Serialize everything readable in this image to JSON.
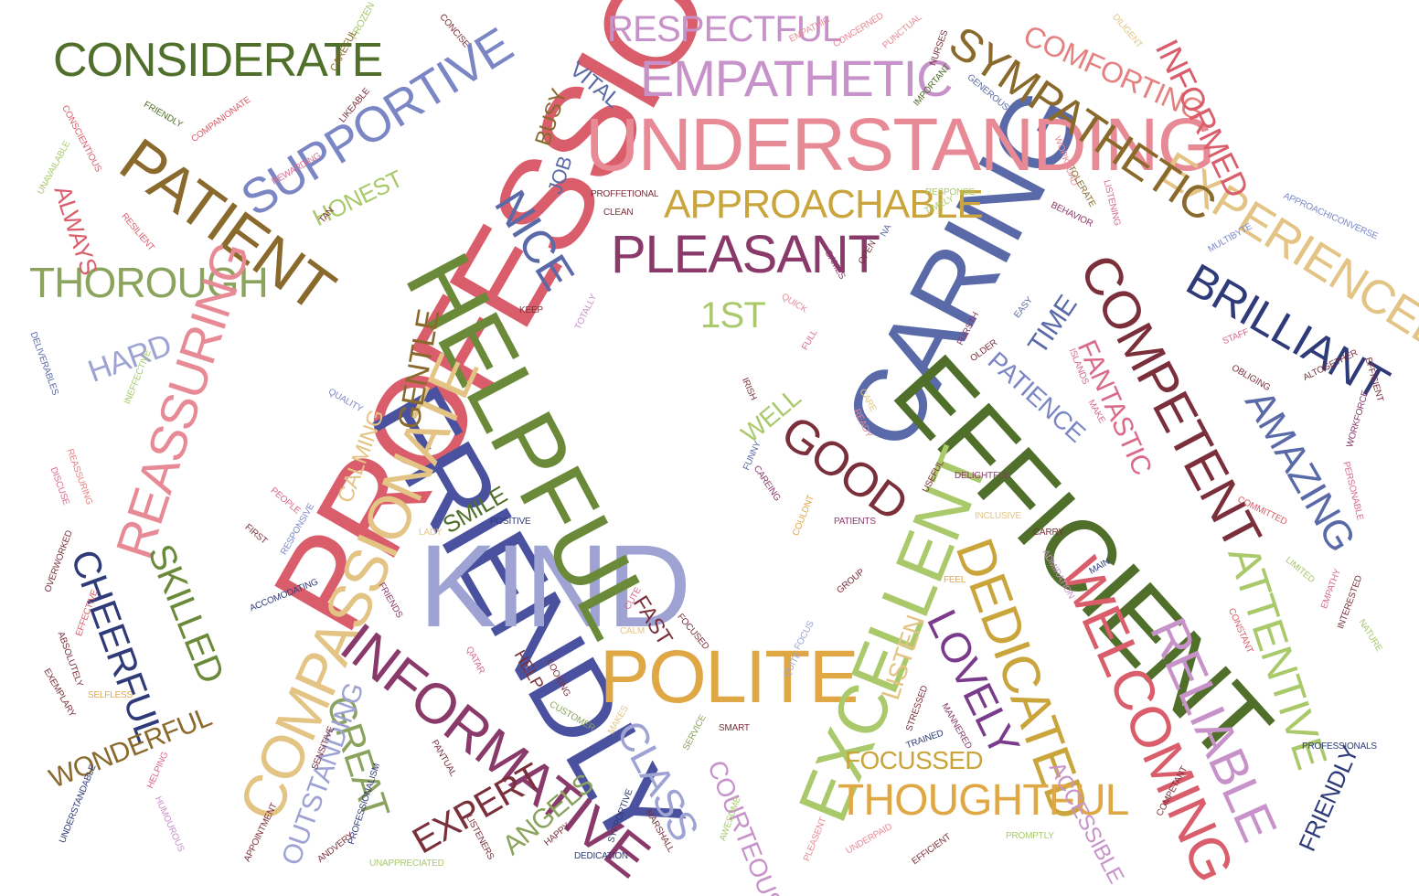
{
  "palette": {
    "red": "#d95d6a",
    "pink": "#e88a95",
    "navy": "#4a52a0",
    "lavender": "#9ea3d4",
    "periwinkle": "#7b86c5",
    "olive": "#6a8a3a",
    "lightgreen": "#a9c96b",
    "darkgreen": "#4f6f2a",
    "sage": "#8aa35d",
    "gold": "#e0a844",
    "mustard": "#c9a53c",
    "tan": "#e3c485",
    "brown": "#8a6a2c",
    "maroon": "#7a2f3a",
    "plum": "#8a3a6a",
    "orchid": "#c792c9",
    "magenta": "#b040a0",
    "purple": "#7a3b8c",
    "darknavy": "#2f3a78",
    "salmon": "#e58080",
    "rose": "#d96a8a",
    "slate": "#5a6aa8"
  },
  "words": [
    {
      "text": "PROFESSIONAL",
      "color": "red"
    },
    {
      "text": "FRIENDLY",
      "color": "navy"
    },
    {
      "text": "KIND",
      "color": "lavender"
    },
    {
      "text": "HELPFUL",
      "color": "olive"
    },
    {
      "text": "CARING",
      "color": "slate"
    },
    {
      "text": "EFFICIENT",
      "color": "darkgreen"
    },
    {
      "text": "UNDERSTANDING",
      "color": "pink"
    },
    {
      "text": "EMPATHETIC",
      "color": "orchid"
    },
    {
      "text": "RESPECTFUL",
      "color": "orchid"
    },
    {
      "text": "CONSIDERATE",
      "color": "darkgreen"
    },
    {
      "text": "SUPPORTIVE",
      "color": "periwinkle"
    },
    {
      "text": "PATIENT",
      "color": "brown"
    },
    {
      "text": "THOROUGH",
      "color": "sage"
    },
    {
      "text": "REASSURING",
      "color": "pink"
    },
    {
      "text": "COMPASSIONATE",
      "color": "tan"
    },
    {
      "text": "INFORMATIVE",
      "color": "plum"
    },
    {
      "text": "POLITE",
      "color": "gold"
    },
    {
      "text": "EXCELLENT",
      "color": "lightgreen"
    },
    {
      "text": "DEDICATED",
      "color": "mustard"
    },
    {
      "text": "WELCOMING",
      "color": "red"
    },
    {
      "text": "RELIABLE",
      "color": "orchid"
    },
    {
      "text": "ATTENTIVE",
      "color": "lightgreen"
    },
    {
      "text": "COMPETENT",
      "color": "maroon"
    },
    {
      "text": "AMAZING",
      "color": "slate"
    },
    {
      "text": "BRILLIANT",
      "color": "darknavy"
    },
    {
      "text": "EXPERIENCED",
      "color": "tan"
    },
    {
      "text": "SYMPATHETIC",
      "color": "brown"
    },
    {
      "text": "COMFORTING",
      "color": "salmon"
    },
    {
      "text": "INFORMED",
      "color": "red"
    },
    {
      "text": "APPROACHABLE",
      "color": "mustard"
    },
    {
      "text": "PLEASANT",
      "color": "plum"
    },
    {
      "text": "NICE",
      "color": "slate"
    },
    {
      "text": "GOOD",
      "color": "maroon"
    },
    {
      "text": "GENTLE",
      "color": "brown"
    },
    {
      "text": "CHEERFUL",
      "color": "darknavy"
    },
    {
      "text": "SKILLED",
      "color": "olive"
    },
    {
      "text": "LOVELY",
      "color": "purple"
    },
    {
      "text": "THOUGHTFUL",
      "color": "gold"
    },
    {
      "text": "FOCUSSED",
      "color": "mustard"
    },
    {
      "text": "GREAT",
      "color": "sage"
    },
    {
      "text": "CLASS",
      "color": "lavender"
    },
    {
      "text": "EXPERT",
      "color": "maroon"
    },
    {
      "text": "OUTSTANDING",
      "color": "lavender"
    },
    {
      "text": "WONDERFUL",
      "color": "brown"
    },
    {
      "text": "FANTASTIC",
      "color": "rose"
    },
    {
      "text": "PATIENCE",
      "color": "periwinkle"
    },
    {
      "text": "TIME",
      "color": "slate"
    },
    {
      "text": "1ST",
      "color": "lightgreen"
    },
    {
      "text": "HARD",
      "color": "lavender"
    },
    {
      "text": "ALWAYS",
      "color": "red"
    },
    {
      "text": "HONEST",
      "color": "lightgreen"
    },
    {
      "text": "VITAL",
      "color": "slate"
    },
    {
      "text": "BUSY",
      "color": "brown"
    },
    {
      "text": "JOB",
      "color": "slate"
    },
    {
      "text": "CALMING",
      "color": "tan"
    },
    {
      "text": "WELL",
      "color": "lightgreen"
    },
    {
      "text": "SMILE",
      "color": "darkgreen"
    },
    {
      "text": "ANGELS",
      "color": "sage"
    },
    {
      "text": "COURTEOUS",
      "color": "orchid"
    },
    {
      "text": "ACCESSIBLE",
      "color": "orchid"
    },
    {
      "text": "LISTEN",
      "color": "tan"
    },
    {
      "text": "FRIENDLY",
      "color": "darknavy"
    },
    {
      "text": "FAST",
      "color": "maroon"
    },
    {
      "text": "HELP",
      "color": "maroon"
    },
    {
      "text": "FROZEN",
      "color": "lightgreen"
    },
    {
      "text": "CAREFUL",
      "color": "brown"
    },
    {
      "text": "CONCISE",
      "color": "maroon"
    },
    {
      "text": "EMPATHIC",
      "color": "pink"
    },
    {
      "text": "CONCERNED",
      "color": "pink"
    },
    {
      "text": "PUNCTUAL",
      "color": "pink"
    },
    {
      "text": "NURSES",
      "color": "maroon"
    },
    {
      "text": "DILIGENT",
      "color": "tan"
    },
    {
      "text": "IMPORTANT",
      "color": "darkgreen"
    },
    {
      "text": "GENEROUS",
      "color": "slate"
    },
    {
      "text": "FRIENDLY",
      "color": "darkgreen"
    },
    {
      "text": "COMPANIONATE",
      "color": "red"
    },
    {
      "text": "CONSCIENTIOUS",
      "color": "red"
    },
    {
      "text": "LIKEABLE",
      "color": "maroon"
    },
    {
      "text": "UNAVAILABLE",
      "color": "lightgreen"
    },
    {
      "text": "REWARDING",
      "color": "rose"
    },
    {
      "text": "WORKLOAD",
      "color": "pink"
    },
    {
      "text": "TOLERATE",
      "color": "brown"
    },
    {
      "text": "LISTENING",
      "color": "rose"
    },
    {
      "text": "RESPONSE",
      "color": "lightgreen"
    },
    {
      "text": "TIMELY",
      "color": "lightgreen"
    },
    {
      "text": "BEHAVIOR",
      "color": "plum"
    },
    {
      "text": "PROFFETIONAL",
      "color": "maroon"
    },
    {
      "text": "CLEAN",
      "color": "maroon"
    },
    {
      "text": "RESILIENT",
      "color": "red"
    },
    {
      "text": "TAN",
      "color": "maroon"
    },
    {
      "text": "APPROACHICONVERSE",
      "color": "periwinkle"
    },
    {
      "text": "MULTIBYTE",
      "color": "periwinkle"
    },
    {
      "text": "GAMES",
      "color": "plum"
    },
    {
      "text": "OPEN",
      "color": "maroon"
    },
    {
      "text": "NA",
      "color": "slate"
    },
    {
      "text": "QUICK",
      "color": "pink"
    },
    {
      "text": "TOTALLY",
      "color": "orchid"
    },
    {
      "text": "KEEP",
      "color": "maroon"
    },
    {
      "text": "EASY",
      "color": "slate"
    },
    {
      "text": "FURSTH",
      "color": "plum"
    },
    {
      "text": "OLDER",
      "color": "maroon"
    },
    {
      "text": "DELIVERABLES",
      "color": "slate"
    },
    {
      "text": "INEFFECTIVE",
      "color": "lightgreen"
    },
    {
      "text": "QUALITY",
      "color": "periwinkle"
    },
    {
      "text": "IRISH",
      "color": "maroon"
    },
    {
      "text": "FULL",
      "color": "rose"
    },
    {
      "text": "STAFF",
      "color": "rose"
    },
    {
      "text": "ISLANDS",
      "color": "rose"
    },
    {
      "text": "OBLIGING",
      "color": "maroon"
    },
    {
      "text": "ALTOGETHER",
      "color": "maroon"
    },
    {
      "text": "EFFICIENT",
      "color": "maroon"
    },
    {
      "text": "WORKFORCE",
      "color": "plum"
    },
    {
      "text": "CARE",
      "color": "tan"
    },
    {
      "text": "READY",
      "color": "pink"
    },
    {
      "text": "MAKE",
      "color": "rose"
    },
    {
      "text": "FUNNY",
      "color": "slate"
    },
    {
      "text": "CAREING",
      "color": "plum"
    },
    {
      "text": "USEFUL",
      "color": "maroon"
    },
    {
      "text": "DELIGHTFUL",
      "color": "plum"
    },
    {
      "text": "COMMITTED",
      "color": "red"
    },
    {
      "text": "PERSONABLE",
      "color": "rose"
    },
    {
      "text": "DISCUSE",
      "color": "rose"
    },
    {
      "text": "REASSURING",
      "color": "salmon"
    },
    {
      "text": "PEOPLE",
      "color": "rose"
    },
    {
      "text": "RESPONSIVE",
      "color": "periwinkle"
    },
    {
      "text": "FIRST",
      "color": "maroon"
    },
    {
      "text": "LADY",
      "color": "tan"
    },
    {
      "text": "POSITIVE",
      "color": "darknavy"
    },
    {
      "text": "COULDNT",
      "color": "gold"
    },
    {
      "text": "PATIENTS",
      "color": "plum"
    },
    {
      "text": "INCLUSIVE",
      "color": "tan"
    },
    {
      "text": "CARRY",
      "color": "maroon"
    },
    {
      "text": "OVERWORKED",
      "color": "maroon"
    },
    {
      "text": "ACCOMODATING",
      "color": "darknavy"
    },
    {
      "text": "FRIENDS",
      "color": "plum"
    },
    {
      "text": "GROUP",
      "color": "maroon"
    },
    {
      "text": "FEEL",
      "color": "gold"
    },
    {
      "text": "ADMIRATION",
      "color": "orchid"
    },
    {
      "text": "MAIN",
      "color": "darknavy"
    },
    {
      "text": "LIMITED",
      "color": "lightgreen"
    },
    {
      "text": "EMPATHY",
      "color": "rose"
    },
    {
      "text": "INTERESTED",
      "color": "maroon"
    },
    {
      "text": "CONSTANT",
      "color": "red"
    },
    {
      "text": "NATURE",
      "color": "lightgreen"
    },
    {
      "text": "EFFECTIVE",
      "color": "red"
    },
    {
      "text": "ABSOLUTELY",
      "color": "maroon"
    },
    {
      "text": "CUTE",
      "color": "rose"
    },
    {
      "text": "CALM",
      "color": "tan"
    },
    {
      "text": "FOCUSED",
      "color": "maroon"
    },
    {
      "text": "FOCUS",
      "color": "lavender"
    },
    {
      "text": "QUITE",
      "color": "lavender"
    },
    {
      "text": "QATAR",
      "color": "rose"
    },
    {
      "text": "LOOKING",
      "color": "maroon"
    },
    {
      "text": "EXEMPLARY",
      "color": "maroon"
    },
    {
      "text": "SELFLESS",
      "color": "gold"
    },
    {
      "text": "CUSTOMER",
      "color": "sage"
    },
    {
      "text": "MAKES",
      "color": "tan"
    },
    {
      "text": "SERVICE",
      "color": "sage"
    },
    {
      "text": "SMART",
      "color": "maroon"
    },
    {
      "text": "STRESSED",
      "color": "maroon"
    },
    {
      "text": "MANNERED",
      "color": "plum"
    },
    {
      "text": "TRAINED",
      "color": "darknavy"
    },
    {
      "text": "PANTUAL",
      "color": "maroon"
    },
    {
      "text": "SENSITIVE",
      "color": "maroon"
    },
    {
      "text": "PROFESSIONALS",
      "color": "darknavy"
    },
    {
      "text": "COMPETANT",
      "color": "maroon"
    },
    {
      "text": "HELPING",
      "color": "rose"
    },
    {
      "text": "HUMOUROUS",
      "color": "orchid"
    },
    {
      "text": "UNDERSTANDABLE",
      "color": "darknavy"
    },
    {
      "text": "APPOINTMENT",
      "color": "maroon"
    },
    {
      "text": "PROFESSIONALISM",
      "color": "darknavy"
    },
    {
      "text": "ANDVERY",
      "color": "maroon"
    },
    {
      "text": "LISTENERS",
      "color": "maroon"
    },
    {
      "text": "HAPPY",
      "color": "maroon"
    },
    {
      "text": "SYPPORTIVE",
      "color": "darknavy"
    },
    {
      "text": "MARSHALL",
      "color": "maroon"
    },
    {
      "text": "AWESOME",
      "color": "lightgreen"
    },
    {
      "text": "PLEASENT",
      "color": "pink"
    },
    {
      "text": "UNDERPAID",
      "color": "pink"
    },
    {
      "text": "EFFICIENT",
      "color": "maroon"
    },
    {
      "text": "PROMPTLY",
      "color": "lightgreen"
    },
    {
      "text": "UNAPPRECIATED",
      "color": "lightgreen"
    },
    {
      "text": "DEDICATION",
      "color": "darknavy"
    }
  ]
}
